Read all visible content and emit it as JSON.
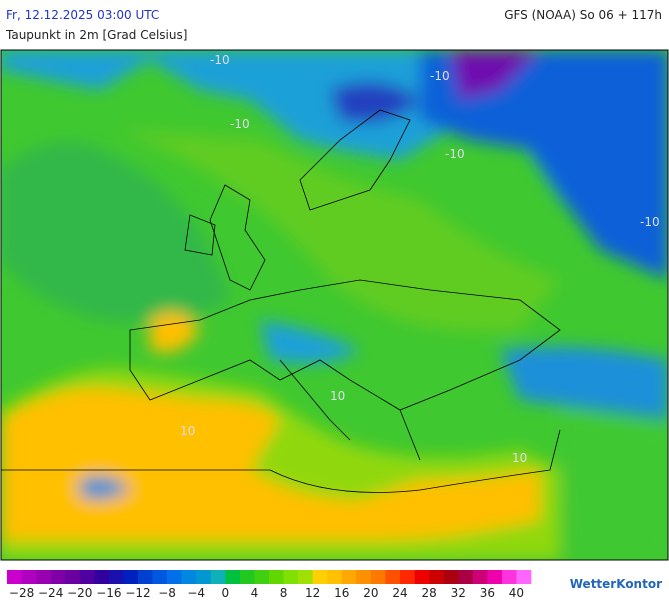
{
  "header": {
    "valid_time": "Fr, 12.12.2025 03:00 UTC",
    "model_run": "GFS (NOAA) So 06 + 117h",
    "parameter": "Taupunkt in 2m [Grad Celsius]"
  },
  "map": {
    "contour_labels": [
      "-10",
      "-10",
      "-10",
      "-10",
      "-10",
      "10",
      "10",
      "10"
    ]
  },
  "legend": {
    "range": [
      -30,
      42
    ],
    "colors": [
      "#cc00cc",
      "#b000c0",
      "#9900b0",
      "#8000a8",
      "#6a00a0",
      "#5000a0",
      "#3300a0",
      "#1a10b0",
      "#0020c0",
      "#0040d0",
      "#0058e0",
      "#0070e8",
      "#0088e0",
      "#0098d0",
      "#10b0b8",
      "#00c040",
      "#20c820",
      "#40d010",
      "#60d800",
      "#80e000",
      "#a0e000",
      "#ffd000",
      "#ffc000",
      "#ffa800",
      "#ff9000",
      "#ff7800",
      "#ff5000",
      "#ff2800",
      "#ee0000",
      "#cc0000",
      "#aa0010",
      "#aa0044",
      "#cc0077",
      "#ee00aa",
      "#ff33dd",
      "#ff66ff"
    ],
    "ticks": [
      {
        "value": -28,
        "label": "−28"
      },
      {
        "value": -24,
        "label": "−24"
      },
      {
        "value": -20,
        "label": "−20"
      },
      {
        "value": -16,
        "label": "−16"
      },
      {
        "value": -12,
        "label": "−12"
      },
      {
        "value": -8,
        "label": "−8"
      },
      {
        "value": -4,
        "label": "−4"
      },
      0,
      4,
      8,
      12,
      16,
      20,
      24,
      28,
      32,
      36,
      40
    ]
  },
  "brand": "WetterKontor"
}
